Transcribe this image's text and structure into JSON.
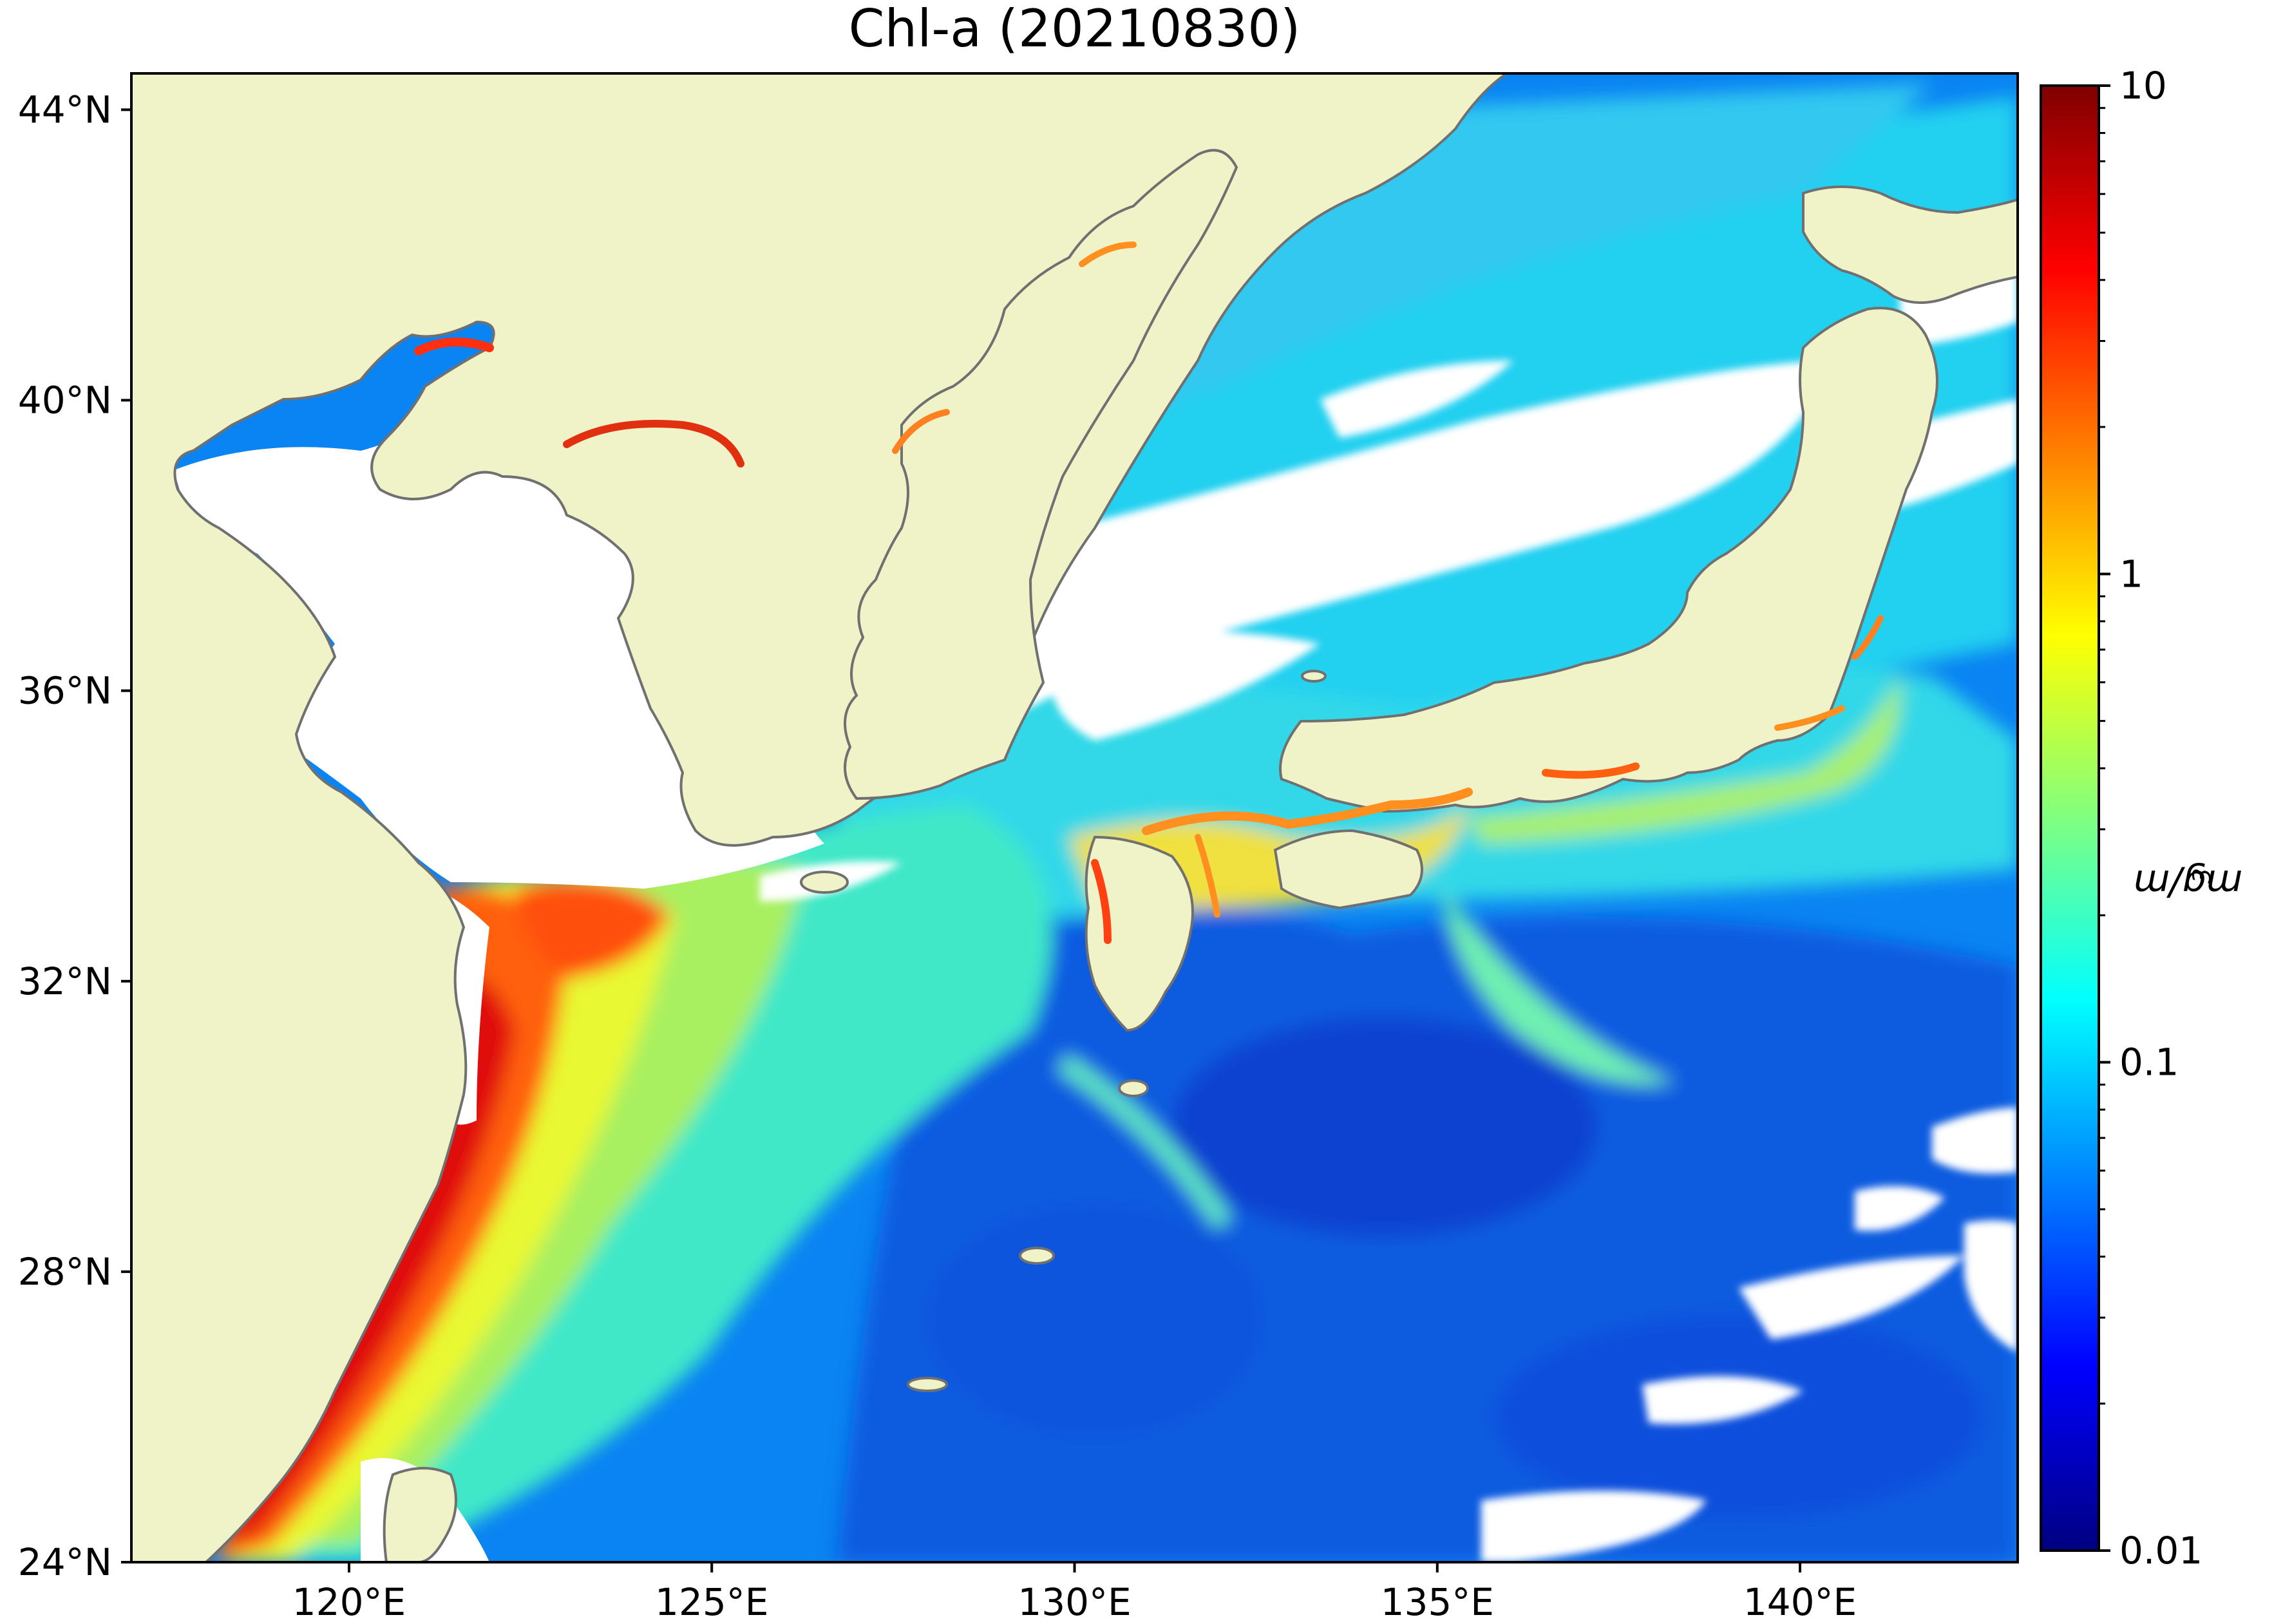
{
  "title": "Chl-a (20210830)",
  "map": {
    "lon_range": [
      117,
      143
    ],
    "lat_range": [
      24,
      44.5
    ],
    "lon_ticks": [
      {
        "value": 120,
        "label": "120°E"
      },
      {
        "value": 125,
        "label": "125°E"
      },
      {
        "value": 130,
        "label": "130°E"
      },
      {
        "value": 135,
        "label": "135°E"
      },
      {
        "value": 140,
        "label": "140°E"
      }
    ],
    "lat_ticks": [
      {
        "value": 44,
        "label": "44°N"
      },
      {
        "value": 40,
        "label": "40°N"
      },
      {
        "value": 36,
        "label": "36°N"
      },
      {
        "value": 32,
        "label": "32°N"
      },
      {
        "value": 28,
        "label": "28°N"
      },
      {
        "value": 24,
        "label": "24°N"
      }
    ],
    "land_color": "#f0f2c8",
    "no_data_color": "#ffffff",
    "coast_color": "#707070"
  },
  "colorbar": {
    "scale": "log",
    "range": [
      0.01,
      10
    ],
    "ticks": [
      {
        "value": 10,
        "label": "10"
      },
      {
        "value": 1,
        "label": "1"
      },
      {
        "value": 0.1,
        "label": "0.1"
      },
      {
        "value": 0.01,
        "label": "0.01"
      }
    ],
    "label_prefix": "mg/m",
    "label_exponent": "3",
    "colormap": "jet",
    "colormap_stops": [
      "#000080",
      "#0000ff",
      "#0080ff",
      "#00ffff",
      "#80ff80",
      "#ffff00",
      "#ff8000",
      "#ff0000",
      "#800000"
    ]
  }
}
